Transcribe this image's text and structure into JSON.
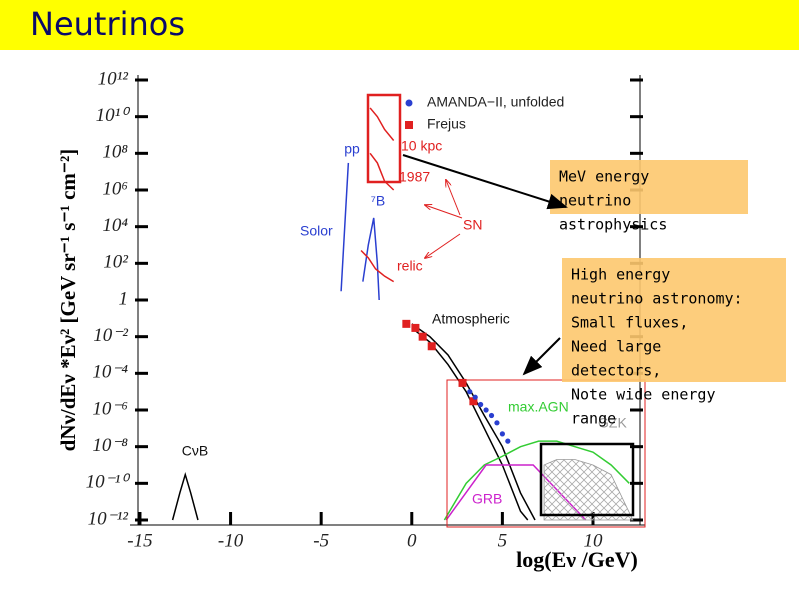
{
  "title": "Neutrinos",
  "chart_data": {
    "type": "line",
    "xlabel": "log(Eν /GeV)",
    "ylabel": "dNν/dEν *Eν² [GeV sr⁻¹ s⁻¹ cm⁻²]",
    "xlim": [
      -15.55,
      12.87
    ],
    "xticks": [
      -15,
      -10,
      -5,
      0,
      5,
      10
    ],
    "ylim": [
      1e-12,
      1000000000000.0
    ],
    "log_y": true,
    "yticks": [
      {
        "value": 1000000000000.0,
        "label": "10¹²"
      },
      {
        "value": 10000000000.0,
        "label": "10¹⁰"
      },
      {
        "value": 100000000.0,
        "label": "10⁸"
      },
      {
        "value": 1000000.0,
        "label": "10⁶"
      },
      {
        "value": 10000.0,
        "label": "10⁴"
      },
      {
        "value": 100.0,
        "label": "10²"
      },
      1,
      {
        "value": 0.01,
        "label": "10⁻²"
      },
      {
        "value": 0.0001,
        "label": "10⁻⁴"
      },
      {
        "value": 1e-06,
        "label": "10⁻⁶"
      },
      {
        "value": 1e-08,
        "label": "10⁻⁸"
      },
      {
        "value": 1e-10,
        "label": "10⁻¹⁰"
      },
      {
        "value": 1e-12,
        "label": "10⁻¹²"
      }
    ],
    "series": [
      {
        "name": "CνB",
        "type": "line",
        "color": "#000000",
        "x": [
          -13.2,
          -12.8,
          -12.5,
          -12.2,
          -11.8
        ],
        "values": [
          1e-12,
          3e-11,
          3e-10,
          3e-11,
          1e-12
        ]
      },
      {
        "name": "pp",
        "type": "line",
        "color": "#2a3fd0",
        "x": [
          -3.9,
          -3.7,
          -3.5
        ],
        "values": [
          3,
          10000.0,
          30000000.0
        ]
      },
      {
        "name": "⁷B",
        "type": "line",
        "color": "#2a3fd0",
        "x": [
          -2.7,
          -2.4,
          -2.1,
          -1.9,
          -1.8
        ],
        "values": [
          10,
          1000,
          30000,
          100,
          1
        ]
      },
      {
        "name": "10 kpc",
        "type": "line",
        "color": "#e02020",
        "x": [
          -2.3,
          -1.9,
          -1.5,
          -1.0
        ],
        "values": [
          30000000000.0,
          10000000000.0,
          2000000000.0,
          500000000.0
        ]
      },
      {
        "name": "1987",
        "type": "line",
        "color": "#e02020",
        "x": [
          -2.3,
          -1.9,
          -1.5,
          -1.0
        ],
        "values": [
          100000000.0,
          30000000.0,
          3000000.0,
          1000000.0
        ]
      },
      {
        "name": "relic",
        "type": "line",
        "color": "#e02020",
        "x": [
          -2.8,
          -2.4,
          -2.0,
          -1.5,
          -1.0
        ],
        "values": [
          500,
          200,
          50,
          20,
          10
        ]
      },
      {
        "name": "Atmospheric",
        "type": "line",
        "color": "#000000",
        "x": [
          0,
          1,
          2,
          3,
          4,
          5,
          6,
          6.4
        ],
        "values": [
          0.03,
          0.005,
          0.0003,
          1e-05,
          1e-07,
          1e-09,
          3e-12,
          1e-12
        ]
      },
      {
        "type": "line",
        "color": "#000000",
        "x": [
          0,
          1,
          2,
          3,
          4,
          5,
          6,
          6.8
        ],
        "values": [
          0.05,
          0.01,
          0.001,
          3e-05,
          5e-07,
          1e-08,
          3e-11,
          1e-12
        ]
      },
      {
        "name": "max.AGN",
        "type": "line",
        "color": "#33cc33",
        "x": [
          1.8,
          3,
          4,
          5,
          6,
          7,
          8,
          9,
          10,
          11,
          12
        ],
        "values": [
          1e-12,
          1e-10,
          1e-09,
          3e-09,
          1e-08,
          2e-08,
          2e-08,
          1e-08,
          5e-09,
          1e-09,
          1e-10
        ]
      },
      {
        "name": "GRB",
        "type": "line",
        "color": "#cc22cc",
        "x": [
          1.9,
          4.1,
          6.7,
          9.6
        ],
        "values": [
          1e-12,
          1e-09,
          1e-09,
          1e-12
        ]
      },
      {
        "name": "GZK",
        "type": "area",
        "color": "#999999",
        "x": [
          7.3,
          8,
          9,
          10,
          11,
          12.2
        ],
        "values": [
          1e-09,
          2e-09,
          2e-09,
          1e-09,
          3e-10,
          1e-12
        ]
      },
      {
        "name": "Frejus",
        "type": "scatter",
        "marker": "square",
        "color": "#e02020",
        "x": [
          -0.3,
          0.2,
          0.6,
          1.1,
          2.8,
          3.4
        ],
        "values": [
          0.05,
          0.03,
          0.01,
          0.003,
          3e-05,
          3e-06
        ]
      },
      {
        "name": "AMANDA−II, unfolded",
        "type": "scatter",
        "marker": "circle",
        "color": "#2a3fd0",
        "x": [
          3.2,
          3.5,
          3.8,
          4.1,
          4.4,
          4.7,
          5.0,
          5.3
        ],
        "values": [
          1e-05,
          5e-06,
          2e-06,
          1e-06,
          5e-07,
          2e-07,
          5e-08,
          2e-08
        ]
      }
    ],
    "annotations": [
      "Solor",
      "SN"
    ]
  },
  "notes": [
    {
      "lines": [
        "MeV energy",
        "neutrino",
        "astrophysics"
      ]
    },
    {
      "lines": [
        "High energy",
        "neutrino astronomy:",
        "Small fluxes,",
        "Need large",
        "detectors,",
        "Note wide energy",
        "range"
      ]
    }
  ]
}
